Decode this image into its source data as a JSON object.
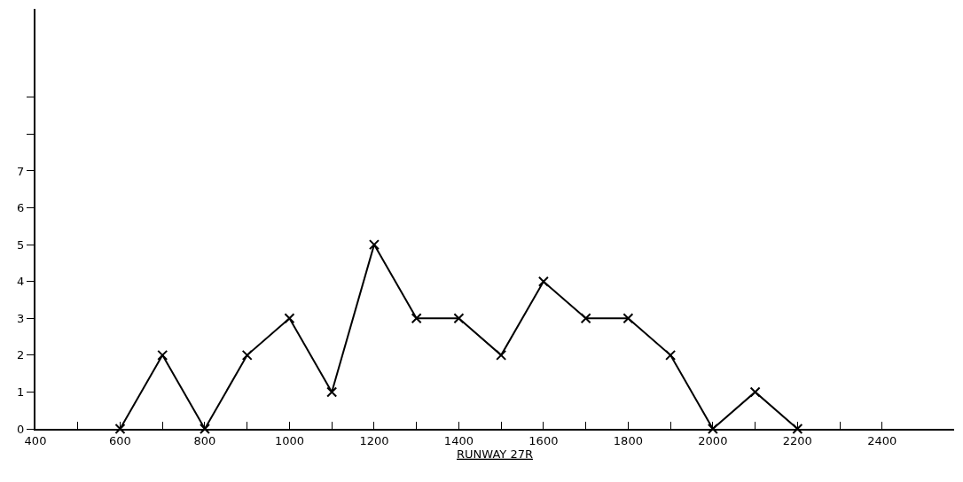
{
  "chart_data": {
    "type": "line",
    "xlabel": "RUNWAY 27R",
    "x": [
      600,
      700,
      800,
      900,
      1000,
      1100,
      1200,
      1300,
      1400,
      1500,
      1600,
      1700,
      1800,
      1900,
      2000,
      2100,
      2200
    ],
    "series": [
      {
        "color": "#000000",
        "values": [
          0,
          2,
          0,
          2,
          3,
          1,
          5,
          3,
          3,
          2,
          4,
          3,
          3,
          2,
          0,
          1,
          0
        ]
      }
    ],
    "xlim": [
      400,
      2570
    ],
    "ylim": [
      0,
      11.4
    ],
    "xticks": [
      400,
      {
        "value": 500,
        "label": null
      },
      600,
      {
        "value": 700,
        "label": null
      },
      800,
      {
        "value": 900,
        "label": null
      },
      1000,
      {
        "value": 1100,
        "label": null
      },
      1200,
      {
        "value": 1300,
        "label": null
      },
      1400,
      {
        "value": 1500,
        "label": null
      },
      1600,
      {
        "value": 1700,
        "label": null
      },
      1800,
      {
        "value": 1900,
        "label": null
      },
      2000,
      {
        "value": 2100,
        "label": null
      },
      2200,
      {
        "value": 2300,
        "label": null
      },
      2400
    ],
    "yticks": [
      0,
      1,
      2,
      3,
      4,
      5,
      6,
      7,
      {
        "value": 8,
        "label": null
      },
      {
        "value": 9,
        "label": null
      }
    ],
    "marker": "cross",
    "line_style": "solid"
  }
}
